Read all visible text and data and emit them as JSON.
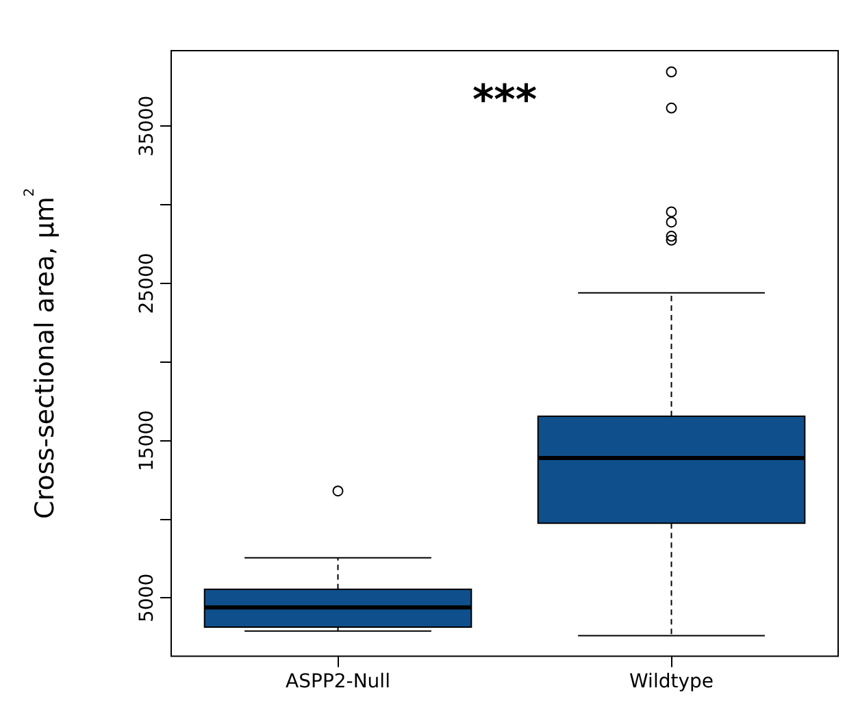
{
  "chart_data": {
    "type": "box",
    "ylabel": "Cross-sectional area, µm$^{2}$",
    "categories": [
      "ASPP2-Null",
      "Wildtype"
    ],
    "color": "#0f4f8c",
    "boxes": [
      {
        "low": 2900,
        "q1": 3150,
        "median": 4400,
        "q3": 5550,
        "high": 7550,
        "outliers": [
          11800
        ]
      },
      {
        "low": 2600,
        "q1": 9750,
        "median": 13900,
        "q3": 16550,
        "high": 24400,
        "outliers": [
          38450,
          36150,
          29550,
          28900,
          28000,
          27750
        ]
      }
    ],
    "ylim": [
      1300,
      39800
    ],
    "yticks": [
      5000,
      {
        "value": 10000,
        "label": null
      },
      15000,
      {
        "value": 20000,
        "label": null
      },
      25000,
      {
        "value": 30000,
        "label": null
      },
      35000
    ],
    "annotations": [
      "***"
    ],
    "grid": false,
    "legend": false
  }
}
